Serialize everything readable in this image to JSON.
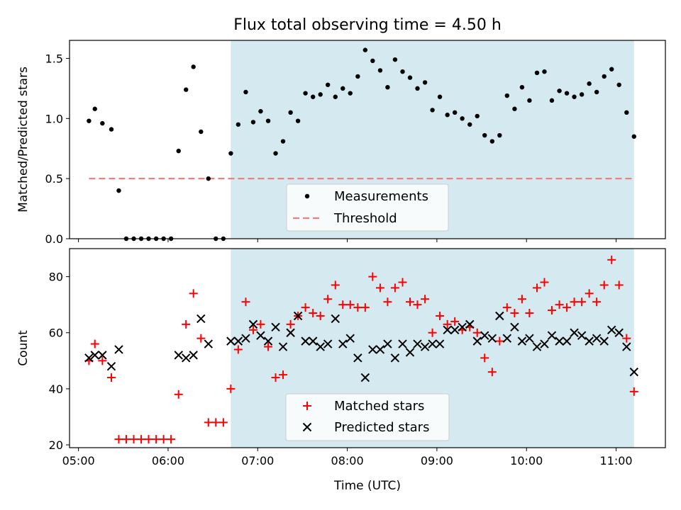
{
  "title": "Flux total observing time = 4.50 h",
  "colors": {
    "shade": "#d4eaf0",
    "measurement": "#000000",
    "threshold": "#f08080",
    "matched": "#ff0000",
    "predicted": "#000000"
  },
  "chart_data": [
    {
      "type": "scatter",
      "ylabel": "Matched/Predicted stars",
      "xlabel": "",
      "xlim": [
        4.9,
        11.55
      ],
      "ylim": [
        0,
        1.65
      ],
      "yticks": [
        0.0,
        0.5,
        1.0,
        1.5
      ],
      "ytick_labels": [
        "0.0",
        "0.5",
        "1.0",
        "1.5"
      ],
      "xticks": [
        5,
        6,
        7,
        8,
        9,
        10,
        11
      ],
      "shaded_region": [
        6.7,
        11.2
      ],
      "legend_position": "bottom-center",
      "series": [
        {
          "name": "Measurements",
          "marker": "dot",
          "x": [
            5.117,
            5.183,
            5.267,
            5.367,
            5.45,
            5.533,
            5.617,
            5.7,
            5.783,
            5.867,
            5.95,
            6.033,
            6.117,
            6.2,
            6.283,
            6.367,
            6.45,
            6.533,
            6.617,
            6.7,
            6.783,
            6.867,
            6.95,
            7.033,
            7.117,
            7.2,
            7.283,
            7.367,
            7.45,
            7.533,
            7.617,
            7.7,
            7.783,
            7.867,
            7.95,
            8.033,
            8.117,
            8.2,
            8.283,
            8.367,
            8.45,
            8.533,
            8.617,
            8.7,
            8.783,
            8.867,
            8.95,
            9.033,
            9.117,
            9.2,
            9.283,
            9.367,
            9.45,
            9.533,
            9.617,
            9.7,
            9.783,
            9.867,
            9.95,
            10.033,
            10.117,
            10.2,
            10.283,
            10.367,
            10.45,
            10.533,
            10.617,
            10.7,
            10.783,
            10.867,
            10.95,
            11.033,
            11.117,
            11.2
          ],
          "y": [
            0.98,
            1.08,
            0.96,
            0.91,
            0.4,
            0.0,
            0.0,
            0.0,
            0.0,
            0.0,
            0.0,
            0.0,
            0.73,
            1.24,
            1.43,
            0.89,
            0.5,
            0.0,
            0.0,
            0.71,
            0.95,
            1.22,
            0.97,
            1.06,
            0.98,
            0.71,
            0.81,
            1.05,
            0.98,
            1.21,
            1.18,
            1.2,
            1.28,
            1.18,
            1.25,
            1.21,
            1.35,
            1.57,
            1.48,
            1.4,
            1.26,
            1.49,
            1.39,
            1.34,
            1.25,
            1.3,
            1.07,
            1.18,
            1.03,
            1.05,
            1.0,
            0.95,
            1.02,
            0.86,
            0.81,
            0.86,
            1.19,
            1.08,
            1.26,
            1.15,
            1.38,
            1.39,
            1.15,
            1.23,
            1.21,
            1.18,
            1.2,
            1.29,
            1.22,
            1.35,
            1.41,
            1.28,
            1.05,
            0.85
          ]
        },
        {
          "name": "Threshold",
          "style": "dashed",
          "x": [
            5.117,
            11.2
          ],
          "y": [
            0.5,
            0.5
          ]
        }
      ]
    },
    {
      "type": "scatter",
      "ylabel": "Count",
      "xlabel": "Time (UTC)",
      "xlim": [
        4.9,
        11.55
      ],
      "ylim": [
        19,
        90
      ],
      "yticks": [
        20,
        40,
        60,
        80
      ],
      "ytick_labels": [
        "20",
        "40",
        "60",
        "80"
      ],
      "xticks": [
        5,
        6,
        7,
        8,
        9,
        10,
        11
      ],
      "xtick_labels": [
        "05:00",
        "06:00",
        "07:00",
        "08:00",
        "09:00",
        "10:00",
        "11:00"
      ],
      "shaded_region": [
        6.7,
        11.2
      ],
      "legend_position": "bottom-center",
      "series": [
        {
          "name": "Matched stars",
          "marker": "plus",
          "x": [
            5.117,
            5.183,
            5.267,
            5.367,
            5.45,
            5.533,
            5.617,
            5.7,
            5.783,
            5.867,
            5.95,
            6.033,
            6.117,
            6.2,
            6.283,
            6.367,
            6.45,
            6.533,
            6.617,
            6.7,
            6.783,
            6.867,
            6.95,
            7.033,
            7.117,
            7.2,
            7.283,
            7.367,
            7.45,
            7.533,
            7.617,
            7.7,
            7.783,
            7.867,
            7.95,
            8.033,
            8.117,
            8.2,
            8.283,
            8.367,
            8.45,
            8.533,
            8.617,
            8.7,
            8.783,
            8.867,
            8.95,
            9.033,
            9.117,
            9.2,
            9.283,
            9.367,
            9.45,
            9.533,
            9.617,
            9.7,
            9.783,
            9.867,
            9.95,
            10.033,
            10.117,
            10.2,
            10.283,
            10.367,
            10.45,
            10.533,
            10.617,
            10.7,
            10.783,
            10.867,
            10.95,
            11.033,
            11.117,
            11.2
          ],
          "y": [
            50,
            56,
            50,
            44,
            22,
            22,
            22,
            22,
            22,
            22,
            22,
            22,
            38,
            63,
            74,
            58,
            28,
            28,
            28,
            40,
            54,
            71,
            61,
            63,
            55,
            44,
            45,
            63,
            66,
            69,
            67,
            66,
            72,
            77,
            70,
            70,
            69,
            69,
            80,
            76,
            71,
            76,
            78,
            71,
            70,
            72,
            60,
            66,
            63,
            64,
            61,
            62,
            60,
            51,
            46,
            57,
            69,
            67,
            72,
            67,
            76,
            78,
            68,
            70,
            69,
            71,
            71,
            74,
            71,
            77,
            86,
            77,
            58,
            39
          ]
        },
        {
          "name": "Predicted stars",
          "marker": "x",
          "x": [
            5.117,
            5.183,
            5.267,
            5.367,
            5.45,
            6.117,
            6.2,
            6.283,
            6.367,
            6.45,
            6.7,
            6.783,
            6.867,
            6.95,
            7.033,
            7.117,
            7.2,
            7.283,
            7.367,
            7.45,
            7.533,
            7.617,
            7.7,
            7.783,
            7.867,
            7.95,
            8.033,
            8.117,
            8.2,
            8.283,
            8.367,
            8.45,
            8.533,
            8.617,
            8.7,
            8.783,
            8.867,
            8.95,
            9.033,
            9.117,
            9.2,
            9.283,
            9.367,
            9.45,
            9.533,
            9.617,
            9.7,
            9.783,
            9.867,
            9.95,
            10.033,
            10.117,
            10.2,
            10.283,
            10.367,
            10.45,
            10.533,
            10.617,
            10.7,
            10.783,
            10.867,
            10.95,
            11.033,
            11.117,
            11.2
          ],
          "y": [
            51,
            52,
            52,
            48,
            54,
            52,
            51,
            52,
            65,
            56,
            57,
            57,
            58,
            63,
            59,
            57,
            62,
            55,
            60,
            66,
            57,
            57,
            55,
            56,
            65,
            56,
            58,
            51,
            44,
            54,
            54,
            56,
            51,
            56,
            53,
            56,
            55,
            56,
            56,
            61,
            61,
            62,
            63,
            57,
            59,
            58,
            66,
            58,
            62,
            57,
            58,
            55,
            56,
            59,
            57,
            57,
            60,
            59,
            57,
            58,
            57,
            61,
            60,
            55,
            46
          ]
        }
      ]
    }
  ]
}
